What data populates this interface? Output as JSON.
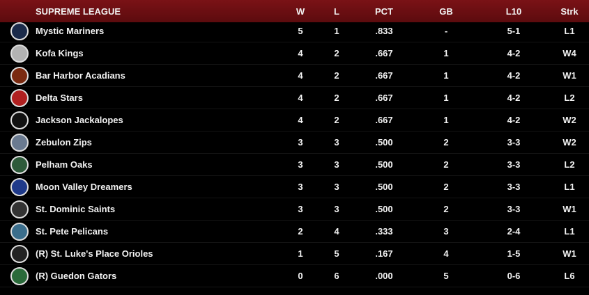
{
  "table": {
    "columns": [
      "SUPREME LEAGUE",
      "W",
      "L",
      "PCT",
      "GB",
      "L10",
      "Strk"
    ],
    "rows": [
      [
        "Mystic Mariners",
        "5",
        "1",
        ".833",
        "-",
        "5-1",
        "L1"
      ],
      [
        "Kofa Kings",
        "4",
        "2",
        ".667",
        "1",
        "4-2",
        "W4"
      ],
      [
        "Bar Harbor Acadians",
        "4",
        "2",
        ".667",
        "1",
        "4-2",
        "W1"
      ],
      [
        "Delta Stars",
        "4",
        "2",
        ".667",
        "1",
        "4-2",
        "L2"
      ],
      [
        "Jackson Jackalopes",
        "4",
        "2",
        ".667",
        "1",
        "4-2",
        "W2"
      ],
      [
        "Zebulon Zips",
        "3",
        "3",
        ".500",
        "2",
        "3-3",
        "W2"
      ],
      [
        "Pelham Oaks",
        "3",
        "3",
        ".500",
        "2",
        "3-3",
        "L2"
      ],
      [
        "Moon Valley Dreamers",
        "3",
        "3",
        ".500",
        "2",
        "3-3",
        "L1"
      ],
      [
        "St. Dominic Saints",
        "3",
        "3",
        ".500",
        "2",
        "3-3",
        "W1"
      ],
      [
        "St. Pete Pelicans",
        "2",
        "4",
        ".333",
        "3",
        "2-4",
        "L1"
      ],
      [
        "(R) St. Luke's Place Orioles",
        "1",
        "5",
        ".167",
        "4",
        "1-5",
        "W1"
      ],
      [
        "(R) Guedon Gators",
        "0",
        "6",
        ".000",
        "5",
        "0-6",
        "L6"
      ]
    ]
  }
}
